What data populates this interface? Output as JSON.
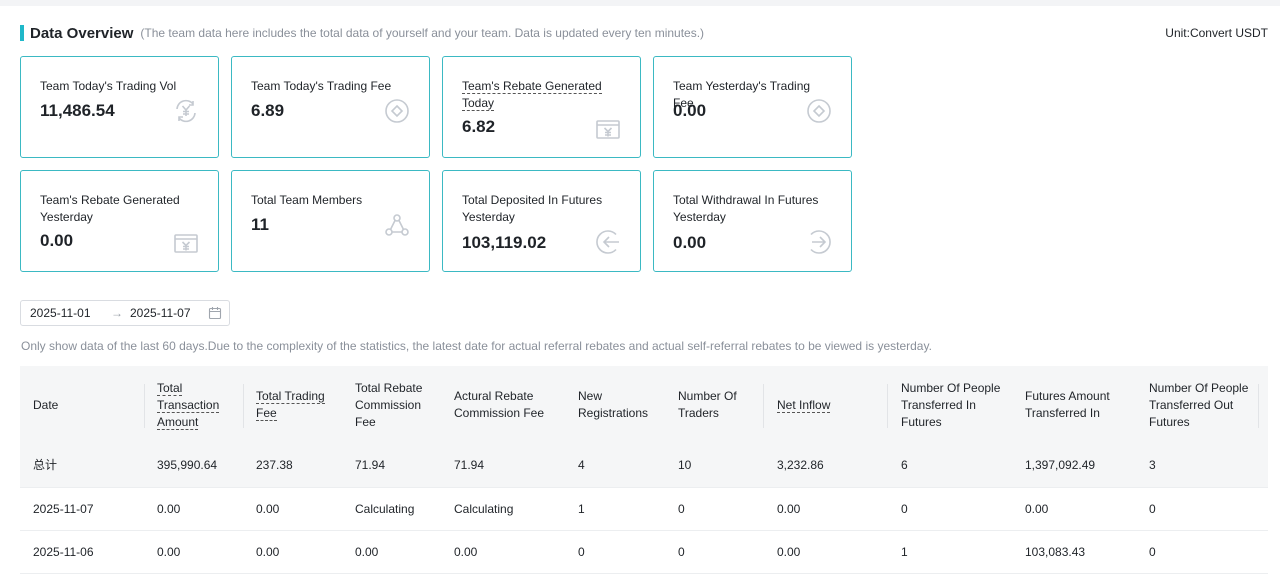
{
  "header": {
    "title": "Data Overview",
    "subtitle": "(The team data here includes the total data of yourself and your team. Data is updated every ten minutes.)",
    "unit": "Unit:Convert USDT"
  },
  "cards": [
    {
      "label": "Team Today's Trading Vol",
      "value": "11,486.54",
      "icon": "yuan-exchange-icon"
    },
    {
      "label": "Team Today's Trading Fee",
      "value": "6.89",
      "icon": "fee-icon"
    },
    {
      "label": "Team's Rebate Generated Today",
      "value": "6.82",
      "icon": "rebate-icon"
    },
    {
      "label": "Team Yesterday's Trading Fee",
      "value": "0.00",
      "icon": "fee-icon"
    },
    {
      "label": "Team's Rebate Generated Yesterday",
      "value": "0.00",
      "icon": "rebate-icon"
    },
    {
      "label": "Total Team Members",
      "value": "11",
      "icon": "team-members-icon"
    },
    {
      "label": "Total Deposited In Futures Yesterday",
      "value": "103,119.02",
      "icon": "deposit-arrow-icon"
    },
    {
      "label": "Total Withdrawal In Futures Yesterday",
      "value": "0.00",
      "icon": "withdraw-arrow-icon"
    }
  ],
  "date_range": {
    "start": "2025-11-01",
    "separator": "→",
    "end": "2025-11-07"
  },
  "note": "Only show data of the last 60 days.Due to the complexity of the statistics, the latest date for actual referral rebates and actual self-referral rebates to be viewed is yesterday.",
  "table": {
    "headers": [
      "Date",
      "Total Transaction Amount",
      "Total Trading Fee",
      "Total Rebate Commission Fee",
      "Actural Rebate Commission Fee",
      "New Registrations",
      "Number Of Traders",
      "Net Inflow",
      "Number Of People Transferred In Futures",
      "Futures Amount Transferred In",
      "Number Of People Transferred Out Futures"
    ],
    "rows": [
      [
        "总计",
        "395,990.64",
        "237.38",
        "71.94",
        "71.94",
        "4",
        "10",
        "3,232.86",
        "6",
        "1,397,092.49",
        "3"
      ],
      [
        "2025-11-07",
        "0.00",
        "0.00",
        "Calculating",
        "Calculating",
        "1",
        "0",
        "0.00",
        "0",
        "0.00",
        "0"
      ],
      [
        "2025-11-06",
        "0.00",
        "0.00",
        "0.00",
        "0.00",
        "0",
        "0",
        "0.00",
        "1",
        "103,083.43",
        "0"
      ]
    ]
  },
  "colors": {
    "accent": "#1fb8c9",
    "card_border": "#3bb9c3",
    "icon": "#c5cad1",
    "muted_text": "#8a909a"
  }
}
